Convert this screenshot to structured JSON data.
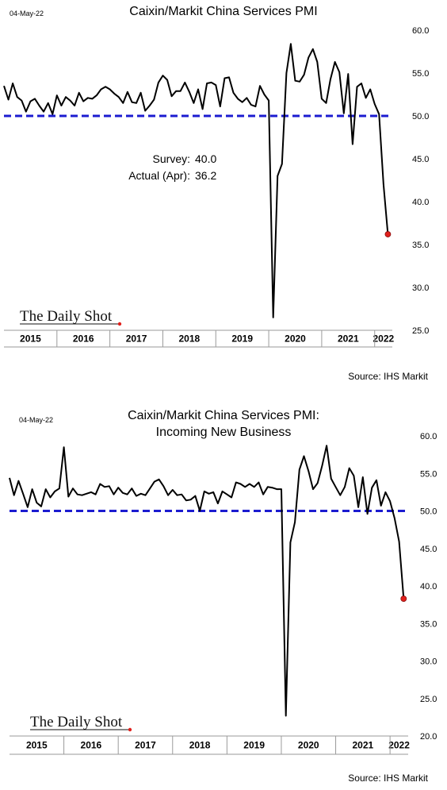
{
  "chart_data": [
    {
      "type": "line",
      "date_stamp": "04-May-22",
      "title": [
        "Caixin/Markit China Services PMI"
      ],
      "source": "Source: IHS Markit",
      "logo": "The Daily Shot",
      "ylim": [
        25,
        60
      ],
      "yticks": [
        "60.0",
        "55.0",
        "50.0",
        "45.0",
        "40.0",
        "35.0",
        "30.0",
        "25.0"
      ],
      "ytick_values": [
        60,
        55,
        50,
        45,
        40,
        35,
        30,
        25
      ],
      "x_start": "2015-01",
      "x_end": "2022-05",
      "years": [
        "2015",
        "2016",
        "2017",
        "2018",
        "2019",
        "2020",
        "2021",
        "2022"
      ],
      "reference_line": 50.0,
      "annotations": [
        {
          "label": "Survey:",
          "value": "40.0"
        },
        {
          "label": "Actual (Apr):",
          "value": "36.2"
        }
      ],
      "highlight_last": true,
      "colors": {
        "line": "#000000",
        "reference": "#1c1cd0",
        "marker": "#e0201c",
        "year_axis": "#9a9a9a"
      },
      "series": [
        {
          "values": [
            53.5,
            51.9,
            53.8,
            52.2,
            51.8,
            50.5,
            51.7,
            52.0,
            51.2,
            50.5,
            51.5,
            50.2,
            52.4,
            51.2,
            52.2,
            51.8,
            51.2,
            52.7,
            51.7,
            52.1,
            52.0,
            52.4,
            53.1,
            53.4,
            53.1,
            52.6,
            52.2,
            51.5,
            52.8,
            51.6,
            51.5,
            52.7,
            50.6,
            51.2,
            51.9,
            53.9,
            54.7,
            54.2,
            52.3,
            52.9,
            52.9,
            53.9,
            52.8,
            51.5,
            53.1,
            50.8,
            53.8,
            53.9,
            53.6,
            51.1,
            54.4,
            54.5,
            52.7,
            52.0,
            51.6,
            52.1,
            51.3,
            51.1,
            53.5,
            52.5,
            51.8,
            26.5,
            43.0,
            44.4,
            55.0,
            58.4,
            54.1,
            54.0,
            54.8,
            56.8,
            57.8,
            56.3,
            52.0,
            51.5,
            54.3,
            56.3,
            55.1,
            50.3,
            54.9,
            46.7,
            53.4,
            53.8,
            52.1,
            53.1,
            51.4,
            50.2,
            42.0,
            36.2
          ]
        }
      ]
    },
    {
      "type": "line",
      "date_stamp": "04-May-22",
      "title": [
        "Caixin/Markit China Services PMI:",
        "Incoming New Business"
      ],
      "source": "Source: IHS Markit",
      "logo": "The Daily Shot",
      "ylim": [
        20,
        60
      ],
      "yticks": [
        "60.0",
        "55.0",
        "50.0",
        "45.0",
        "40.0",
        "35.0",
        "30.0",
        "25.0",
        "20.0"
      ],
      "ytick_values": [
        60,
        55,
        50,
        45,
        40,
        35,
        30,
        25,
        20
      ],
      "x_start": "2015-01",
      "x_end": "2022-05",
      "years": [
        "2015",
        "2016",
        "2017",
        "2018",
        "2019",
        "2020",
        "2021",
        "2022"
      ],
      "reference_line": 50.0,
      "annotations": [],
      "highlight_last": true,
      "colors": {
        "line": "#000000",
        "reference": "#1c1cd0",
        "marker": "#e0201c",
        "year_axis": "#9a9a9a"
      },
      "series": [
        {
          "values": [
            54.4,
            52.1,
            54.0,
            52.3,
            50.5,
            52.9,
            51.1,
            50.6,
            52.9,
            51.8,
            52.6,
            53.0,
            58.5,
            51.9,
            53.0,
            52.2,
            52.1,
            52.3,
            52.5,
            52.2,
            53.6,
            53.2,
            53.3,
            52.2,
            53.1,
            52.4,
            52.2,
            53.0,
            52.0,
            52.3,
            52.1,
            53.0,
            53.9,
            54.2,
            53.3,
            52.1,
            52.8,
            52.1,
            52.2,
            51.4,
            51.5,
            52.0,
            50.0,
            52.6,
            52.3,
            52.5,
            51.0,
            52.6,
            52.2,
            51.8,
            53.8,
            53.6,
            53.2,
            53.6,
            53.2,
            53.8,
            52.2,
            53.2,
            53.1,
            52.9,
            52.9,
            22.7,
            45.8,
            48.5,
            55.5,
            57.3,
            55.3,
            52.9,
            53.7,
            56.0,
            58.7,
            54.3,
            53.2,
            52.1,
            53.2,
            55.7,
            54.7,
            50.5,
            54.5,
            49.6,
            53.1,
            54.1,
            50.7,
            52.5,
            51.3,
            49.0,
            45.9,
            38.3
          ]
        }
      ]
    }
  ]
}
